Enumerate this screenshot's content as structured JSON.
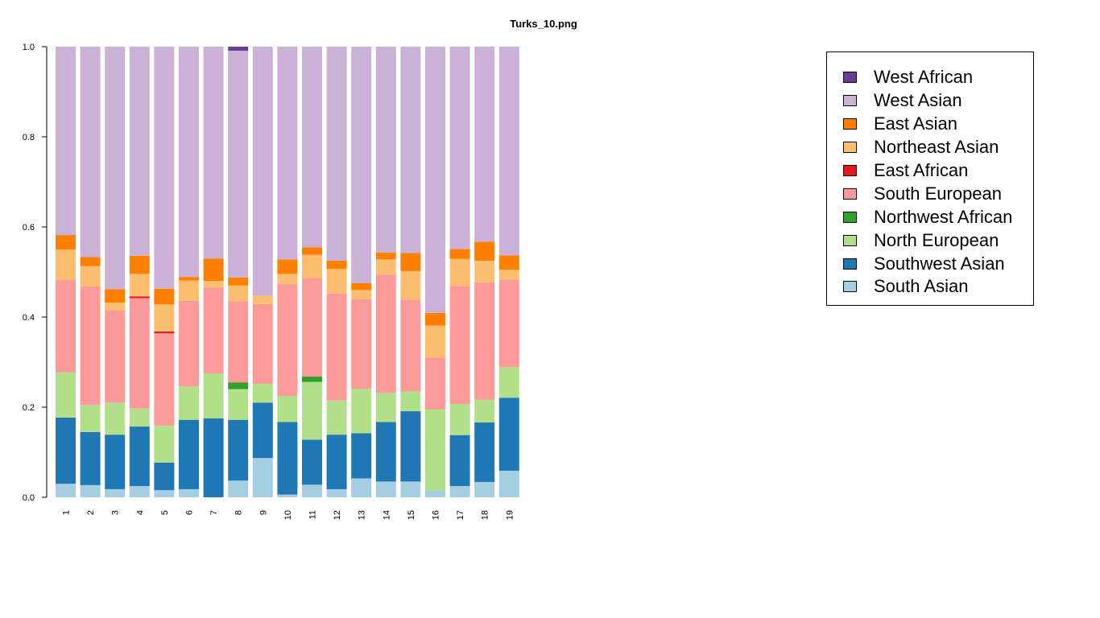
{
  "chart_data": {
    "type": "bar",
    "stacked": true,
    "title": "Turks_10.png",
    "xlabel": "",
    "ylabel": "",
    "ylim": [
      0,
      1
    ],
    "yticks": [
      "0.0",
      "0.2",
      "0.4",
      "0.6",
      "0.8",
      "1.0"
    ],
    "categories": [
      "1",
      "2",
      "3",
      "4",
      "5",
      "6",
      "7",
      "8",
      "9",
      "10",
      "11",
      "12",
      "13",
      "14",
      "15",
      "16",
      "17",
      "18",
      "19"
    ],
    "legend_placement": "right",
    "series": [
      {
        "name": "South Asian",
        "color": "#A6CEE3",
        "values": [
          0.03,
          0.027,
          0.018,
          0.025,
          0.016,
          0.018,
          0.0,
          0.037,
          0.087,
          0.006,
          0.028,
          0.018,
          0.042,
          0.035,
          0.035,
          0.015,
          0.025,
          0.034,
          0.059
        ]
      },
      {
        "name": "Southwest Asian",
        "color": "#1F78B4",
        "values": [
          0.147,
          0.118,
          0.121,
          0.132,
          0.061,
          0.154,
          0.175,
          0.135,
          0.123,
          0.161,
          0.1,
          0.121,
          0.1,
          0.132,
          0.156,
          0.0,
          0.113,
          0.132,
          0.162
        ]
      },
      {
        "name": "North European",
        "color": "#B2DF8A",
        "values": [
          0.1,
          0.06,
          0.071,
          0.04,
          0.082,
          0.074,
          0.1,
          0.068,
          0.042,
          0.058,
          0.128,
          0.076,
          0.099,
          0.065,
          0.044,
          0.18,
          0.069,
          0.051,
          0.068
        ]
      },
      {
        "name": "Northwest African",
        "color": "#33A02C",
        "values": [
          0,
          0,
          0,
          0,
          0,
          0,
          0,
          0.015,
          0,
          0,
          0.012,
          0,
          0,
          0,
          0,
          0,
          0,
          0,
          0
        ]
      },
      {
        "name": "South European",
        "color": "#FB9A99",
        "values": [
          0.205,
          0.263,
          0.205,
          0.245,
          0.205,
          0.19,
          0.19,
          0.18,
          0.177,
          0.248,
          0.219,
          0.237,
          0.199,
          0.262,
          0.204,
          0.115,
          0.262,
          0.26,
          0.194
        ]
      },
      {
        "name": "East African",
        "color": "#E31A1C",
        "values": [
          0,
          0,
          0,
          0.004,
          0.004,
          0,
          0,
          0,
          0,
          0,
          0,
          0,
          0,
          0,
          0,
          0,
          0,
          0,
          0
        ]
      },
      {
        "name": "Northeast Asian",
        "color": "#FDBF6F",
        "values": [
          0.068,
          0.045,
          0.017,
          0.05,
          0.06,
          0.045,
          0.015,
          0.035,
          0.018,
          0.023,
          0.051,
          0.055,
          0.02,
          0.034,
          0.063,
          0.071,
          0.06,
          0.048,
          0.022
        ]
      },
      {
        "name": "East Asian",
        "color": "#FF7F00",
        "values": [
          0.032,
          0.02,
          0.03,
          0.04,
          0.035,
          0.008,
          0.05,
          0.018,
          0,
          0.032,
          0.017,
          0.018,
          0.015,
          0.015,
          0.04,
          0.028,
          0.022,
          0.042,
          0.032
        ]
      },
      {
        "name": "West Asian",
        "color": "#CAB2D6",
        "values": [
          0.418,
          0.467,
          0.538,
          0.464,
          0.537,
          0.511,
          0.47,
          0.503,
          0.553,
          0.472,
          0.445,
          0.475,
          0.525,
          0.457,
          0.458,
          0.591,
          0.449,
          0.433,
          0.463
        ]
      },
      {
        "name": "West African",
        "color": "#6A3D9A",
        "values": [
          0,
          0,
          0,
          0,
          0,
          0,
          0,
          0.009,
          0,
          0,
          0,
          0,
          0,
          0,
          0,
          0,
          0,
          0,
          0
        ]
      }
    ]
  },
  "legend": {
    "items": [
      {
        "label": "West African",
        "color": "#6A3D9A"
      },
      {
        "label": "West Asian",
        "color": "#CAB2D6"
      },
      {
        "label": "East Asian",
        "color": "#FF7F00"
      },
      {
        "label": "Northeast Asian",
        "color": "#FDBF6F"
      },
      {
        "label": "East African",
        "color": "#E31A1C"
      },
      {
        "label": "South European",
        "color": "#FB9A99"
      },
      {
        "label": "Northwest African",
        "color": "#33A02C"
      },
      {
        "label": "North European",
        "color": "#B2DF8A"
      },
      {
        "label": "Southwest Asian",
        "color": "#1F78B4"
      },
      {
        "label": "South Asian",
        "color": "#A6CEE3"
      }
    ]
  }
}
